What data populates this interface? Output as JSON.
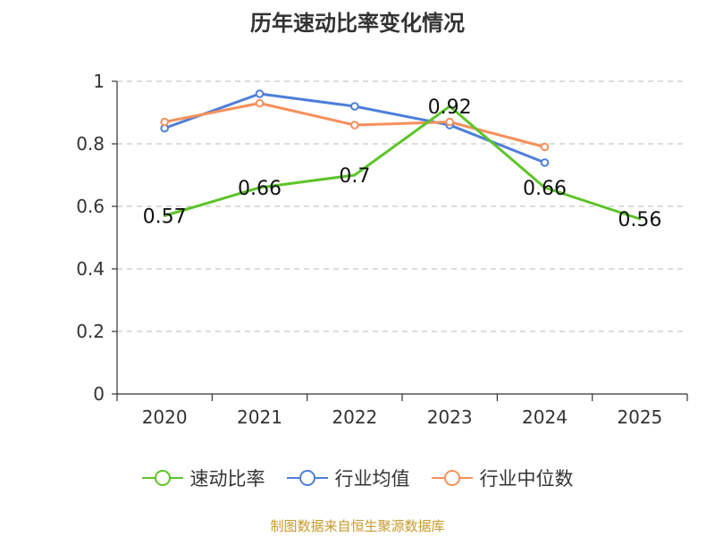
{
  "title": "历年速动比率变化情况",
  "source": "制图数据来自恒生聚源数据库",
  "chart_data": {
    "type": "line",
    "title": "历年速动比率变化情况",
    "categories": [
      "2020",
      "2021",
      "2022",
      "2023",
      "2024",
      "2025"
    ],
    "ylim": [
      0,
      1
    ],
    "yticks": [
      0,
      0.2,
      0.4,
      0.6,
      0.8,
      1
    ],
    "ytick_labels": [
      "0",
      "0.2",
      "0.4",
      "0.6",
      "0.8",
      "1"
    ],
    "grid": true,
    "legend_position": "bottom",
    "series": [
      {
        "name": "速动比率",
        "color": "#5dc42a",
        "values": [
          0.57,
          0.66,
          0.7,
          0.92,
          0.66,
          0.56
        ],
        "labels": [
          "0.57",
          "0.66",
          "0.7",
          "0.92",
          "0.66",
          "0.56"
        ],
        "show_markers": false
      },
      {
        "name": "行业均值",
        "color": "#4d7fd9",
        "values": [
          0.85,
          0.96,
          0.92,
          0.86,
          0.74,
          null
        ],
        "show_markers": true
      },
      {
        "name": "行业中位数",
        "color": "#f5905a",
        "values": [
          0.87,
          0.93,
          0.86,
          0.87,
          0.79,
          null
        ],
        "show_markers": true
      }
    ]
  }
}
